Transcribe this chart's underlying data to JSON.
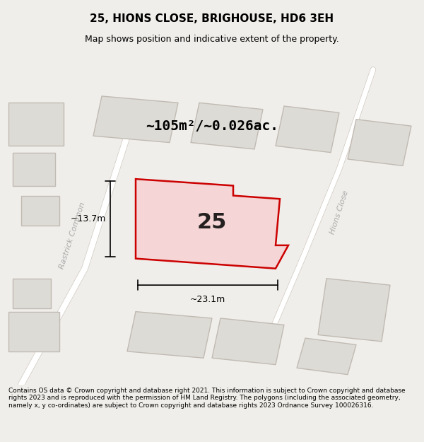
{
  "title": "25, HIONS CLOSE, BRIGHOUSE, HD6 3EH",
  "subtitle": "Map shows position and indicative extent of the property.",
  "area_text": "~105m²/~0.026ac.",
  "property_number": "25",
  "dim_width": "~23.1m",
  "dim_height": "~13.7m",
  "footer": "Contains OS data © Crown copyright and database right 2021. This information is subject to Crown copyright and database rights 2023 and is reproduced with the permission of HM Land Registry. The polygons (including the associated geometry, namely x, y co-ordinates) are subject to Crown copyright and database rights 2023 Ordnance Survey 100026316.",
  "bg_color": "#f0eeea",
  "map_bg": "#f0eeea",
  "road_color": "#ffffff",
  "building_fill": "#e8e8e8",
  "building_stroke": "#c0b8b0",
  "highlight_fill": "#f5d0d0",
  "highlight_stroke": "#cc0000",
  "label_color": "#bbbbbb",
  "street_label1": "Rastrick Common",
  "street_label2": "Hions Close"
}
